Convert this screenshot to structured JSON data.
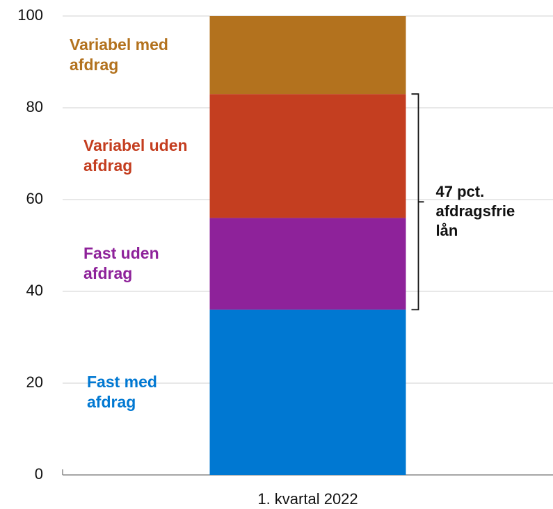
{
  "chart_data": {
    "type": "stacked-bar",
    "categories": [
      "1. kvartal 2022"
    ],
    "series": [
      {
        "name": "Fast med afdrag",
        "color": "#0078d2",
        "values": [
          36
        ]
      },
      {
        "name": "Fast uden afdrag",
        "color": "#8e229a",
        "values": [
          20
        ]
      },
      {
        "name": "Variabel uden afdrag",
        "color": "#c43e20",
        "values": [
          27
        ]
      },
      {
        "name": "Variabel med afdrag",
        "color": "#b3721e",
        "values": [
          17
        ]
      }
    ],
    "ylim": [
      0,
      100
    ],
    "yticks": [
      0,
      20,
      40,
      60,
      80,
      100
    ],
    "grid": true,
    "annotation": "47 pct. afdragsfrie lån"
  }
}
